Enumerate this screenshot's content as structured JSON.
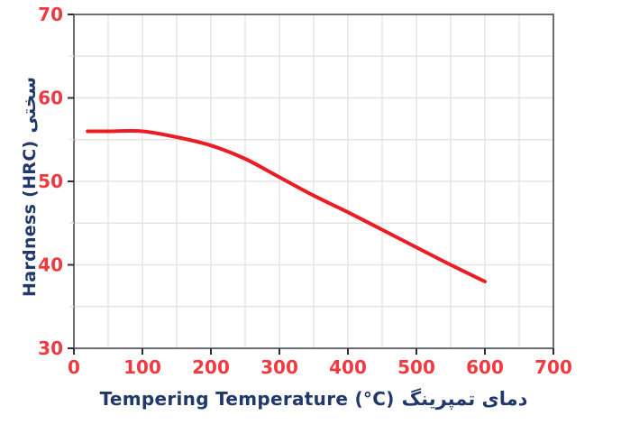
{
  "chart_data": {
    "type": "line",
    "title": "",
    "xlabel": "Tempering Temperature (°C) دمای تمپرینگ",
    "xlabel_en": "Tempering Temperature (°C)",
    "xlabel_fa": "دمای تمپرینگ",
    "ylabel": "Hardness (HRC) سختی",
    "ylabel_en": "Hardness (HRC)",
    "ylabel_fa": "سختی",
    "series": [
      {
        "name": "Hardness (HRC)",
        "x": [
          20,
          50,
          100,
          150,
          200,
          250,
          300,
          350,
          400,
          450,
          500,
          550,
          600
        ],
        "y": [
          56,
          56,
          56,
          55.3,
          54.3,
          52.7,
          50.5,
          48.3,
          46.3,
          44.2,
          42.1,
          40,
          38
        ]
      }
    ],
    "xlim": [
      0,
      700
    ],
    "ylim": [
      30,
      70
    ],
    "x_ticks": [
      0,
      100,
      200,
      300,
      400,
      500,
      600,
      700
    ],
    "y_ticks": [
      30,
      40,
      50,
      60,
      70
    ],
    "x_minor_step": 50,
    "y_minor_step": 5,
    "grid": true,
    "legend": "none",
    "colors": {
      "line": "#ec1c24",
      "tick_label": "#ee3a40",
      "axis_label": "#21386b",
      "grid": "#e4e4e0",
      "border": "#6d6e71",
      "tick_mark": "#2e2e2e",
      "background": "#ffffff"
    }
  }
}
